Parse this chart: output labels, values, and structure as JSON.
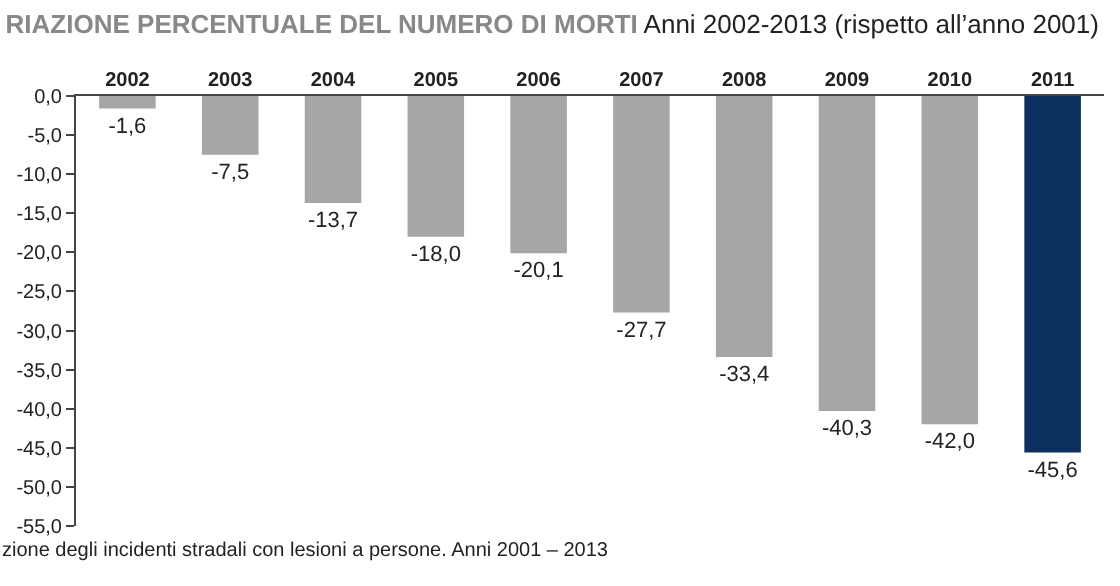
{
  "chart_data": {
    "type": "bar",
    "title": "RIAZIONE PERCENTUALE DEL NUMERO DI MORTI",
    "subtitle": "Anni 2002-2013 (rispetto all’anno 2001)",
    "categories": [
      "2002",
      "2003",
      "2004",
      "2005",
      "2006",
      "2007",
      "2008",
      "2009",
      "2010",
      "2011"
    ],
    "values": [
      -1.6,
      -7.5,
      -13.7,
      -18.0,
      -20.1,
      -27.7,
      -33.4,
      -40.3,
      -42.0,
      -45.6
    ],
    "value_labels": [
      "-1,6",
      "-7,5",
      "-13,7",
      "-18,0",
      "-20,1",
      "-27,7",
      "-33,4",
      "-40,3",
      "-42,0",
      "-45,6"
    ],
    "colors": [
      "#a6a6a6",
      "#a6a6a6",
      "#a6a6a6",
      "#a6a6a6",
      "#a6a6a6",
      "#a6a6a6",
      "#a6a6a6",
      "#a6a6a6",
      "#a6a6a6",
      "#0b2f5e"
    ],
    "ylim": [
      -55,
      0
    ],
    "yticks": [
      {
        "value": 0,
        "label": "0,0"
      },
      {
        "value": -5,
        "label": "-5,0"
      },
      {
        "value": -10,
        "label": "-10,0"
      },
      {
        "value": -15,
        "label": "-15,0"
      },
      {
        "value": -20,
        "label": "-20,0"
      },
      {
        "value": -25,
        "label": "-25,0"
      },
      {
        "value": -30,
        "label": "-30,0"
      },
      {
        "value": -35,
        "label": "-35,0"
      },
      {
        "value": -40,
        "label": "-40,0"
      },
      {
        "value": -45,
        "label": "-45,0"
      },
      {
        "value": -50,
        "label": "-50,0"
      },
      {
        "value": -55,
        "label": "-55,0"
      }
    ],
    "grid": false,
    "annotations": [
      "zione degli incidenti stradali con lesioni a persone. Anni 2001 – 2013"
    ]
  }
}
